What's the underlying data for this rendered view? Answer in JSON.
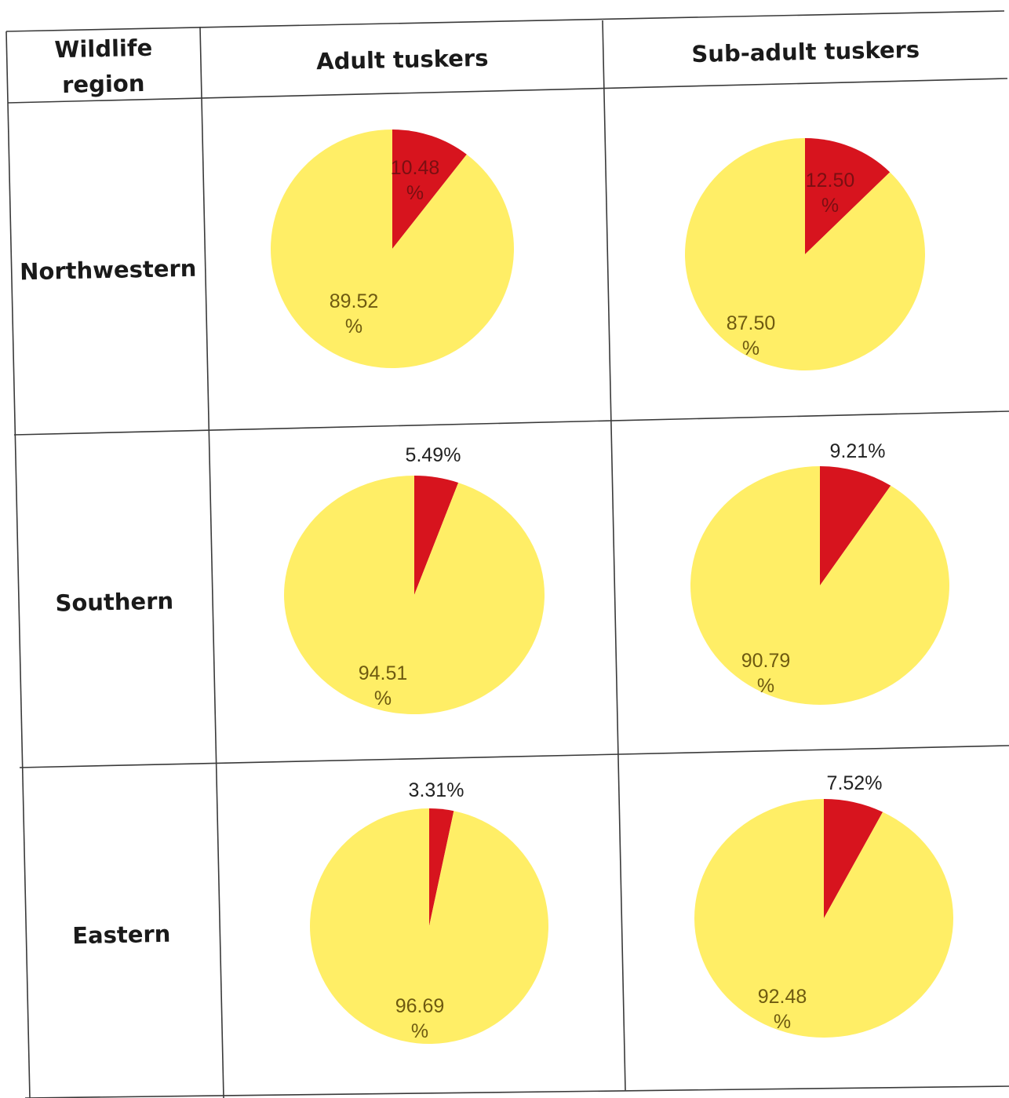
{
  "table": {
    "headers": [
      "Wildlife region",
      "Adult tuskers",
      "Sub-adult tuskers"
    ],
    "regions": [
      "Northwestern",
      "Southern",
      "Eastern"
    ]
  },
  "colors": {
    "minority": "#d7141e",
    "majority": "#ffee66",
    "grid": "#3a3a3a"
  },
  "chart_data": [
    {
      "type": "pie",
      "region": "Northwestern",
      "group": "Adult tuskers",
      "values": [
        10.48,
        89.52
      ],
      "labels": [
        "10.48 %",
        "89.52 %"
      ],
      "colors": [
        "#d7141e",
        "#ffee66"
      ]
    },
    {
      "type": "pie",
      "region": "Northwestern",
      "group": "Sub-adult tuskers",
      "values": [
        12.5,
        87.5
      ],
      "labels": [
        "12.50 %",
        "87.50 %"
      ],
      "colors": [
        "#d7141e",
        "#ffee66"
      ]
    },
    {
      "type": "pie",
      "region": "Southern",
      "group": "Adult tuskers",
      "values": [
        5.49,
        94.51
      ],
      "labels": [
        "5.49%",
        "94.51 %"
      ],
      "colors": [
        "#d7141e",
        "#ffee66"
      ]
    },
    {
      "type": "pie",
      "region": "Southern",
      "group": "Sub-adult tuskers",
      "values": [
        9.21,
        90.79
      ],
      "labels": [
        "9.21%",
        "90.79 %"
      ],
      "colors": [
        "#d7141e",
        "#ffee66"
      ]
    },
    {
      "type": "pie",
      "region": "Eastern",
      "group": "Adult tuskers",
      "values": [
        3.31,
        96.69
      ],
      "labels": [
        "3.31%",
        "96.69 %"
      ],
      "colors": [
        "#d7141e",
        "#ffee66"
      ]
    },
    {
      "type": "pie",
      "region": "Eastern",
      "group": "Sub-adult tuskers",
      "values": [
        7.52,
        92.48
      ],
      "labels": [
        "7.52%",
        "92.48 %"
      ],
      "colors": [
        "#d7141e",
        "#ffee66"
      ]
    }
  ]
}
